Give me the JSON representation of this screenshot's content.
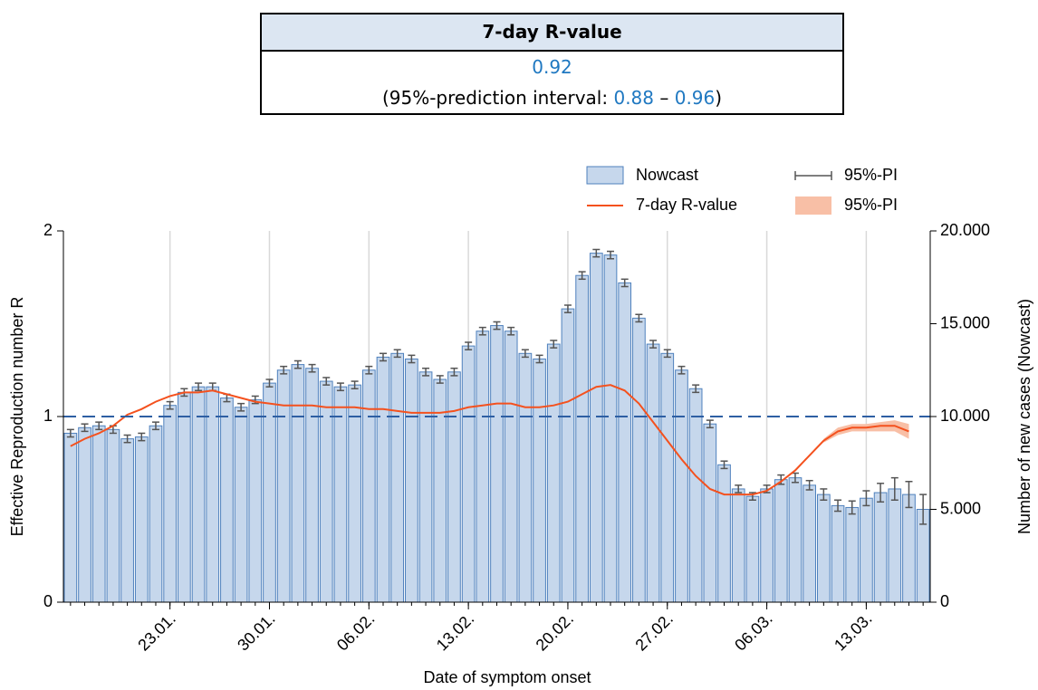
{
  "header_table": {
    "title": "7-day R-value",
    "value": 0.92,
    "interval_prefix": "(95%-prediction interval:",
    "interval_lower": 0.88,
    "interval_separator": "–",
    "interval_upper": 0.96,
    "interval_suffix": ")"
  },
  "chart_data": {
    "type": "bar_line",
    "x_label": "Date of symptom onset",
    "y_label": "Effective Reproduction number R",
    "y2_label": "Number of new cases (Nowcast)",
    "categories": [
      null,
      null,
      null,
      null,
      null,
      null,
      null,
      "23.01.",
      null,
      null,
      null,
      null,
      null,
      null,
      "30.01.",
      null,
      null,
      null,
      null,
      null,
      null,
      "06.02.",
      null,
      null,
      null,
      null,
      null,
      null,
      "13.02.",
      null,
      null,
      null,
      null,
      null,
      null,
      "20.02.",
      null,
      null,
      null,
      null,
      null,
      null,
      "27.02.",
      null,
      null,
      null,
      null,
      null,
      null,
      "06.03.",
      null,
      null,
      null,
      null,
      null,
      null,
      "13.03.",
      null,
      null,
      null,
      null
    ],
    "ylim": [
      0,
      2
    ],
    "yticks": [
      0,
      1,
      2
    ],
    "y2lim": [
      0,
      20000
    ],
    "y2ticks": [
      0,
      {
        "value": 5000,
        "label": "5.000"
      },
      {
        "value": 10000,
        "label": "10.000"
      },
      {
        "value": 15000,
        "label": "15.000"
      },
      {
        "value": 20000,
        "label": "20.000"
      }
    ],
    "reference_line": 1,
    "xgrid": true,
    "series": [
      {
        "name": "Nowcast",
        "type": "bar",
        "axis": "y2",
        "color": "#c6d7ec",
        "edge_color": "#4f81bd",
        "error_name": "95%-PI",
        "error_color": "#555555",
        "values": [
          9100,
          9400,
          9500,
          9300,
          8800,
          8900,
          9500,
          10600,
          11300,
          11600,
          11600,
          11000,
          10500,
          10900,
          11800,
          12500,
          12800,
          12600,
          11900,
          11600,
          11700,
          12500,
          13200,
          13400,
          13100,
          12400,
          12000,
          12400,
          13800,
          14600,
          14900,
          14600,
          13400,
          13100,
          13900,
          15800,
          17600,
          18800,
          18700,
          17200,
          15300,
          13900,
          13400,
          12500,
          11500,
          9600,
          7400,
          6100,
          5700,
          6100,
          6600,
          6700,
          6300,
          5800,
          5200,
          5100,
          5600,
          5900,
          6100,
          5800,
          5000
        ],
        "errors": [
          200,
          200,
          200,
          200,
          200,
          200,
          200,
          200,
          200,
          200,
          200,
          200,
          200,
          200,
          200,
          200,
          200,
          200,
          200,
          200,
          200,
          200,
          200,
          200,
          200,
          200,
          200,
          200,
          200,
          200,
          200,
          200,
          200,
          200,
          200,
          200,
          200,
          200,
          200,
          200,
          200,
          200,
          200,
          200,
          200,
          200,
          200,
          200,
          200,
          200,
          250,
          250,
          250,
          300,
          300,
          350,
          400,
          500,
          600,
          700,
          800
        ]
      },
      {
        "name": "7-day R-value",
        "type": "line",
        "axis": "y",
        "color": "#f4511e",
        "band_name": "95%-PI",
        "band_color": "#f8bfa6",
        "values": [
          0.84,
          0.88,
          0.91,
          0.95,
          1.01,
          1.04,
          1.08,
          1.11,
          1.13,
          1.13,
          1.14,
          1.12,
          1.1,
          1.08,
          1.07,
          1.06,
          1.06,
          1.06,
          1.05,
          1.05,
          1.05,
          1.04,
          1.04,
          1.03,
          1.02,
          1.02,
          1.02,
          1.03,
          1.05,
          1.06,
          1.07,
          1.07,
          1.05,
          1.05,
          1.06,
          1.08,
          1.12,
          1.16,
          1.17,
          1.14,
          1.07,
          0.97,
          0.87,
          0.77,
          0.68,
          0.61,
          0.58,
          0.58,
          0.58,
          0.6,
          0.65,
          0.71,
          0.79,
          0.87,
          0.92,
          0.94,
          0.94,
          0.95,
          0.95,
          0.92,
          null
        ],
        "lower": [
          null,
          null,
          null,
          null,
          null,
          null,
          null,
          null,
          null,
          null,
          null,
          null,
          null,
          null,
          null,
          null,
          null,
          null,
          null,
          null,
          null,
          null,
          null,
          null,
          null,
          null,
          null,
          null,
          null,
          null,
          null,
          null,
          null,
          null,
          null,
          null,
          null,
          null,
          null,
          null,
          null,
          null,
          null,
          null,
          null,
          null,
          null,
          null,
          null,
          null,
          null,
          null,
          null,
          0.86,
          0.9,
          0.92,
          0.92,
          0.92,
          0.92,
          0.88,
          null
        ],
        "upper": [
          null,
          null,
          null,
          null,
          null,
          null,
          null,
          null,
          null,
          null,
          null,
          null,
          null,
          null,
          null,
          null,
          null,
          null,
          null,
          null,
          null,
          null,
          null,
          null,
          null,
          null,
          null,
          null,
          null,
          null,
          null,
          null,
          null,
          null,
          null,
          null,
          null,
          null,
          null,
          null,
          null,
          null,
          null,
          null,
          null,
          null,
          null,
          null,
          null,
          null,
          null,
          null,
          null,
          0.88,
          0.94,
          0.96,
          0.96,
          0.97,
          0.98,
          0.96,
          null
        ]
      }
    ]
  }
}
